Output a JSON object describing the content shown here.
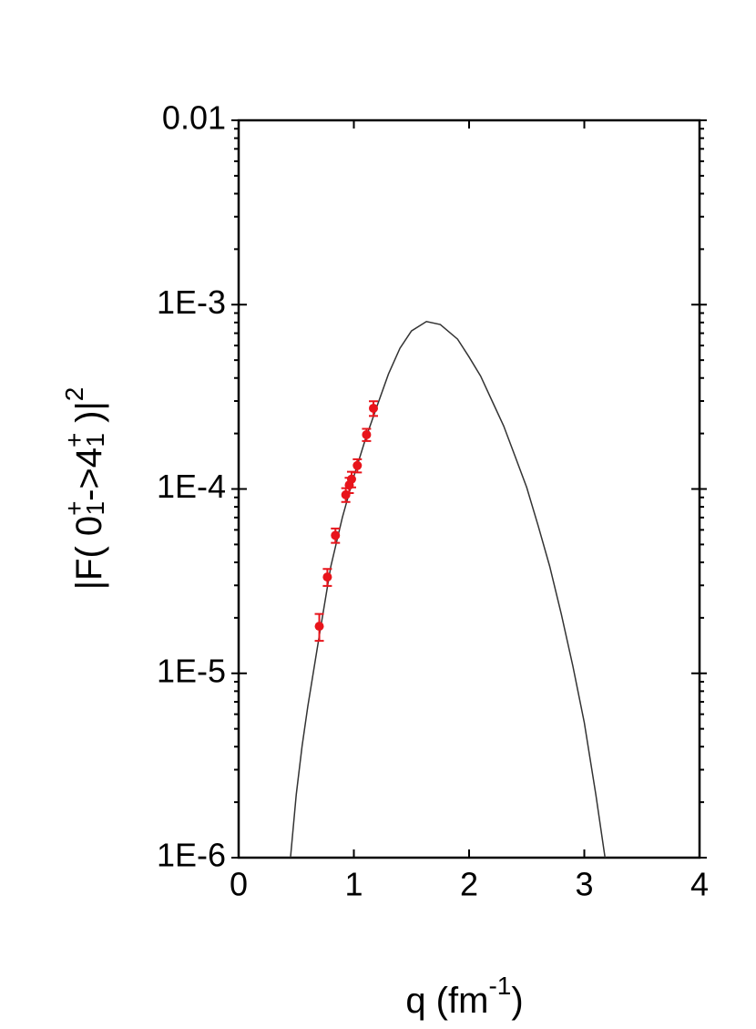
{
  "chart_data": {
    "type": "scatter",
    "xlim": [
      0,
      4
    ],
    "ylim": [
      1e-06,
      0.01
    ],
    "ylog": true,
    "minor_ticks": true,
    "xticks": [
      0,
      1,
      2,
      3,
      4
    ],
    "yticks": [
      {
        "value": 1e-06,
        "label": "1E-6"
      },
      {
        "value": 1e-05,
        "label": "1E-5"
      },
      {
        "value": 0.0001,
        "label": "1E-4"
      },
      {
        "value": 0.001,
        "label": "1E-3"
      },
      0.01
    ],
    "xlabel": [
      {
        "text": "q (fm",
        "pos": "base"
      },
      {
        "text": "-1",
        "pos": "sup"
      },
      {
        "text": ")",
        "pos": "base"
      }
    ],
    "ylabel": [
      {
        "text": "|F( 0",
        "pos": "base"
      },
      {
        "text": "+",
        "pos": "sup"
      },
      {
        "text": "1",
        "pos": "sub"
      },
      {
        "text": "->4",
        "pos": "base"
      },
      {
        "text": "+",
        "pos": "sup"
      },
      {
        "text": "1",
        "pos": "sub"
      },
      {
        "text": " )|",
        "pos": "base"
      },
      {
        "text": "2",
        "pos": "sup"
      }
    ],
    "series": [
      {
        "type": "line",
        "color": "#333333",
        "x": [
          0.45,
          0.5,
          0.55,
          0.6,
          0.7,
          0.8,
          0.9,
          1.0,
          1.1,
          1.2,
          1.3,
          1.4,
          1.5,
          1.63,
          1.75,
          1.9,
          2.0,
          2.1,
          2.2,
          2.3,
          2.4,
          2.5,
          2.6,
          2.7,
          2.8,
          2.9,
          3.0,
          3.1,
          3.18
        ],
        "values": [
          1e-06,
          2.2e-06,
          4e-06,
          6.6e-06,
          1.6e-05,
          3.8e-05,
          7e-05,
          0.000117,
          0.000186,
          0.00028,
          0.00042,
          0.00058,
          0.00072,
          0.00081,
          0.00078,
          0.00065,
          0.00052,
          0.00041,
          0.0003,
          0.00022,
          0.00015,
          0.000102,
          6.3e-05,
          3.8e-05,
          2.1e-05,
          1.1e-05,
          5.4e-06,
          2.2e-06,
          1e-06
        ]
      },
      {
        "type": "scatter",
        "color": "#e8141b",
        "x": [
          0.7,
          0.77,
          0.84,
          0.93,
          0.96,
          0.98,
          1.03,
          1.11,
          1.17
        ],
        "values": [
          1.8e-05,
          3.33e-05,
          5.6e-05,
          9.3e-05,
          0.000105,
          0.000113,
          0.000134,
          0.000197,
          0.000274
        ],
        "errors": [
          3e-06,
          3.5e-06,
          5e-06,
          8e-06,
          1e-05,
          1.1e-05,
          1.1e-05,
          1.5e-05,
          2.5e-05
        ]
      }
    ]
  }
}
